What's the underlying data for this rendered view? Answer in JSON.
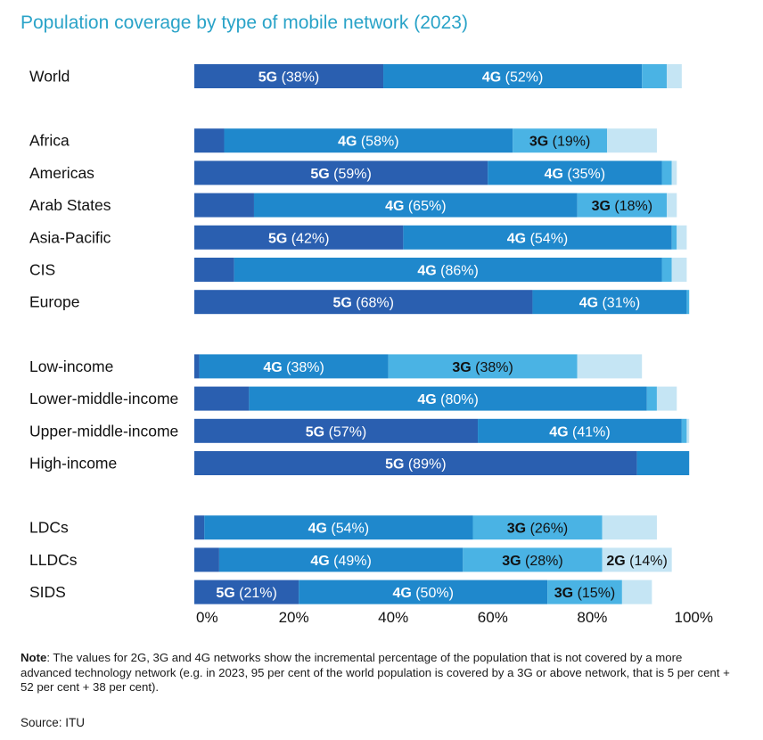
{
  "title": "Population coverage by type of mobile network (2023)",
  "note_label": "Note",
  "note_text": ": The values for 2G, 3G and 4G networks show the incremental percentage of the population that is not covered by a more advanced technology network (e.g. in 2023, 95 per cent of the world population is covered by a 3G or above network, that is 5 per cent + 52 per cent + 38 per cent).",
  "source": "Source: ITU",
  "colors": {
    "5G": "#2a5fb0",
    "4G": "#1f88cc",
    "3G": "#4ab3e4",
    "2G": "#c5e5f4"
  },
  "chart_data": {
    "type": "bar",
    "orientation": "horizontal",
    "stacked": true,
    "xlim": [
      0,
      100
    ],
    "x_ticks": [
      "0%",
      "20%",
      "40%",
      "60%",
      "80%",
      "100%"
    ],
    "series_order": [
      "5G",
      "4G",
      "3G",
      "2G"
    ],
    "rows": [
      {
        "label": "World",
        "group": 0,
        "values": {
          "5G": 38,
          "4G": 52,
          "3G": 5,
          "2G": 3
        },
        "labels": {
          "5G": "5G (38%)",
          "4G": "4G (52%)"
        }
      },
      {
        "label": "Africa",
        "group": 1,
        "values": {
          "5G": 6,
          "4G": 58,
          "3G": 19,
          "2G": 10
        },
        "labels": {
          "4G": "4G (58%)",
          "3G": "3G (19%)"
        }
      },
      {
        "label": "Americas",
        "group": 1,
        "values": {
          "5G": 59,
          "4G": 35,
          "3G": 2,
          "2G": 1
        },
        "labels": {
          "5G": "5G (59%)",
          "4G": "4G (35%)"
        }
      },
      {
        "label": "Arab States",
        "group": 1,
        "values": {
          "5G": 12,
          "4G": 65,
          "3G": 18,
          "2G": 2
        },
        "labels": {
          "4G": "4G (65%)",
          "3G": "3G (18%)"
        }
      },
      {
        "label": "Asia-Pacific",
        "group": 1,
        "values": {
          "5G": 42,
          "4G": 54,
          "3G": 1,
          "2G": 2
        },
        "labels": {
          "5G": "5G (42%)",
          "4G": "4G (54%)"
        }
      },
      {
        "label": "CIS",
        "group": 1,
        "values": {
          "5G": 8,
          "4G": 86,
          "3G": 2,
          "2G": 3
        },
        "labels": {
          "4G": "4G (86%)"
        }
      },
      {
        "label": "Europe",
        "group": 1,
        "values": {
          "5G": 68,
          "4G": 31,
          "3G": 0.5,
          "2G": 0
        },
        "labels": {
          "5G": "5G (68%)",
          "4G": "4G (31%)"
        }
      },
      {
        "label": "Low-income",
        "group": 2,
        "values": {
          "5G": 1,
          "4G": 38,
          "3G": 38,
          "2G": 13
        },
        "labels": {
          "4G": "4G (38%)",
          "3G": "3G (38%)"
        }
      },
      {
        "label": "Lower-middle-income",
        "group": 2,
        "values": {
          "5G": 11,
          "4G": 80,
          "3G": 2,
          "2G": 4
        },
        "labels": {
          "4G": "4G (80%)"
        }
      },
      {
        "label": "Upper-middle-income",
        "group": 2,
        "values": {
          "5G": 57,
          "4G": 41,
          "3G": 1,
          "2G": 0.5
        },
        "labels": {
          "5G": "5G (57%)",
          "4G": "4G (41%)"
        }
      },
      {
        "label": "High-income",
        "group": 2,
        "values": {
          "5G": 89,
          "4G": 10.5,
          "3G": 0,
          "2G": 0
        },
        "labels": {
          "5G": "5G (89%)"
        }
      },
      {
        "label": "LDCs",
        "group": 3,
        "values": {
          "5G": 2,
          "4G": 54,
          "3G": 26,
          "2G": 11
        },
        "labels": {
          "4G": "4G (54%)",
          "3G": "3G (26%)"
        }
      },
      {
        "label": "LLDCs",
        "group": 3,
        "values": {
          "5G": 5,
          "4G": 49,
          "3G": 28,
          "2G": 14
        },
        "labels": {
          "4G": "4G (49%)",
          "3G": "3G (28%)",
          "2G": "2G (14%)"
        }
      },
      {
        "label": "SIDS",
        "group": 3,
        "values": {
          "5G": 21,
          "4G": 50,
          "3G": 15,
          "2G": 6
        },
        "labels": {
          "5G": "5G (21%)",
          "4G": "4G (50%)",
          "3G": "3G (15%)"
        }
      }
    ]
  }
}
